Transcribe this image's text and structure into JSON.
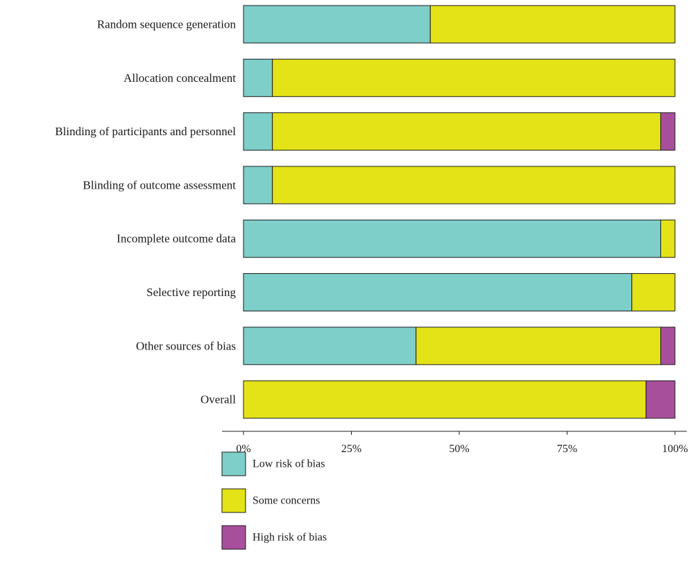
{
  "chart_data": {
    "type": "bar",
    "orientation": "horizontal",
    "stacked": true,
    "percent_scale": true,
    "categories": [
      "Random sequence generation",
      "Allocation concealment",
      "Blinding of participants and personnel",
      "Blinding of outcome assessment",
      "Incomplete outcome data",
      "Selective reporting",
      "Other sources of bias",
      "Overall"
    ],
    "series": [
      {
        "name": "Low risk of bias",
        "color": "#7ececa",
        "values": [
          43.3,
          6.7,
          6.7,
          6.7,
          96.7,
          90.0,
          40.0,
          0.0
        ]
      },
      {
        "name": "Some concerns",
        "color": "#e3e318",
        "values": [
          56.7,
          93.3,
          90.0,
          93.3,
          3.3,
          10.0,
          56.7,
          93.3
        ]
      },
      {
        "name": "High risk of bias",
        "color": "#a84f9c",
        "values": [
          0.0,
          0.0,
          3.3,
          0.0,
          0.0,
          0.0,
          3.3,
          6.7
        ]
      }
    ],
    "x_ticks": [
      "0%",
      "25%",
      "50%",
      "75%",
      "100%"
    ],
    "xlim": [
      0,
      100
    ],
    "grid": false,
    "legend_position": "bottom-left"
  }
}
